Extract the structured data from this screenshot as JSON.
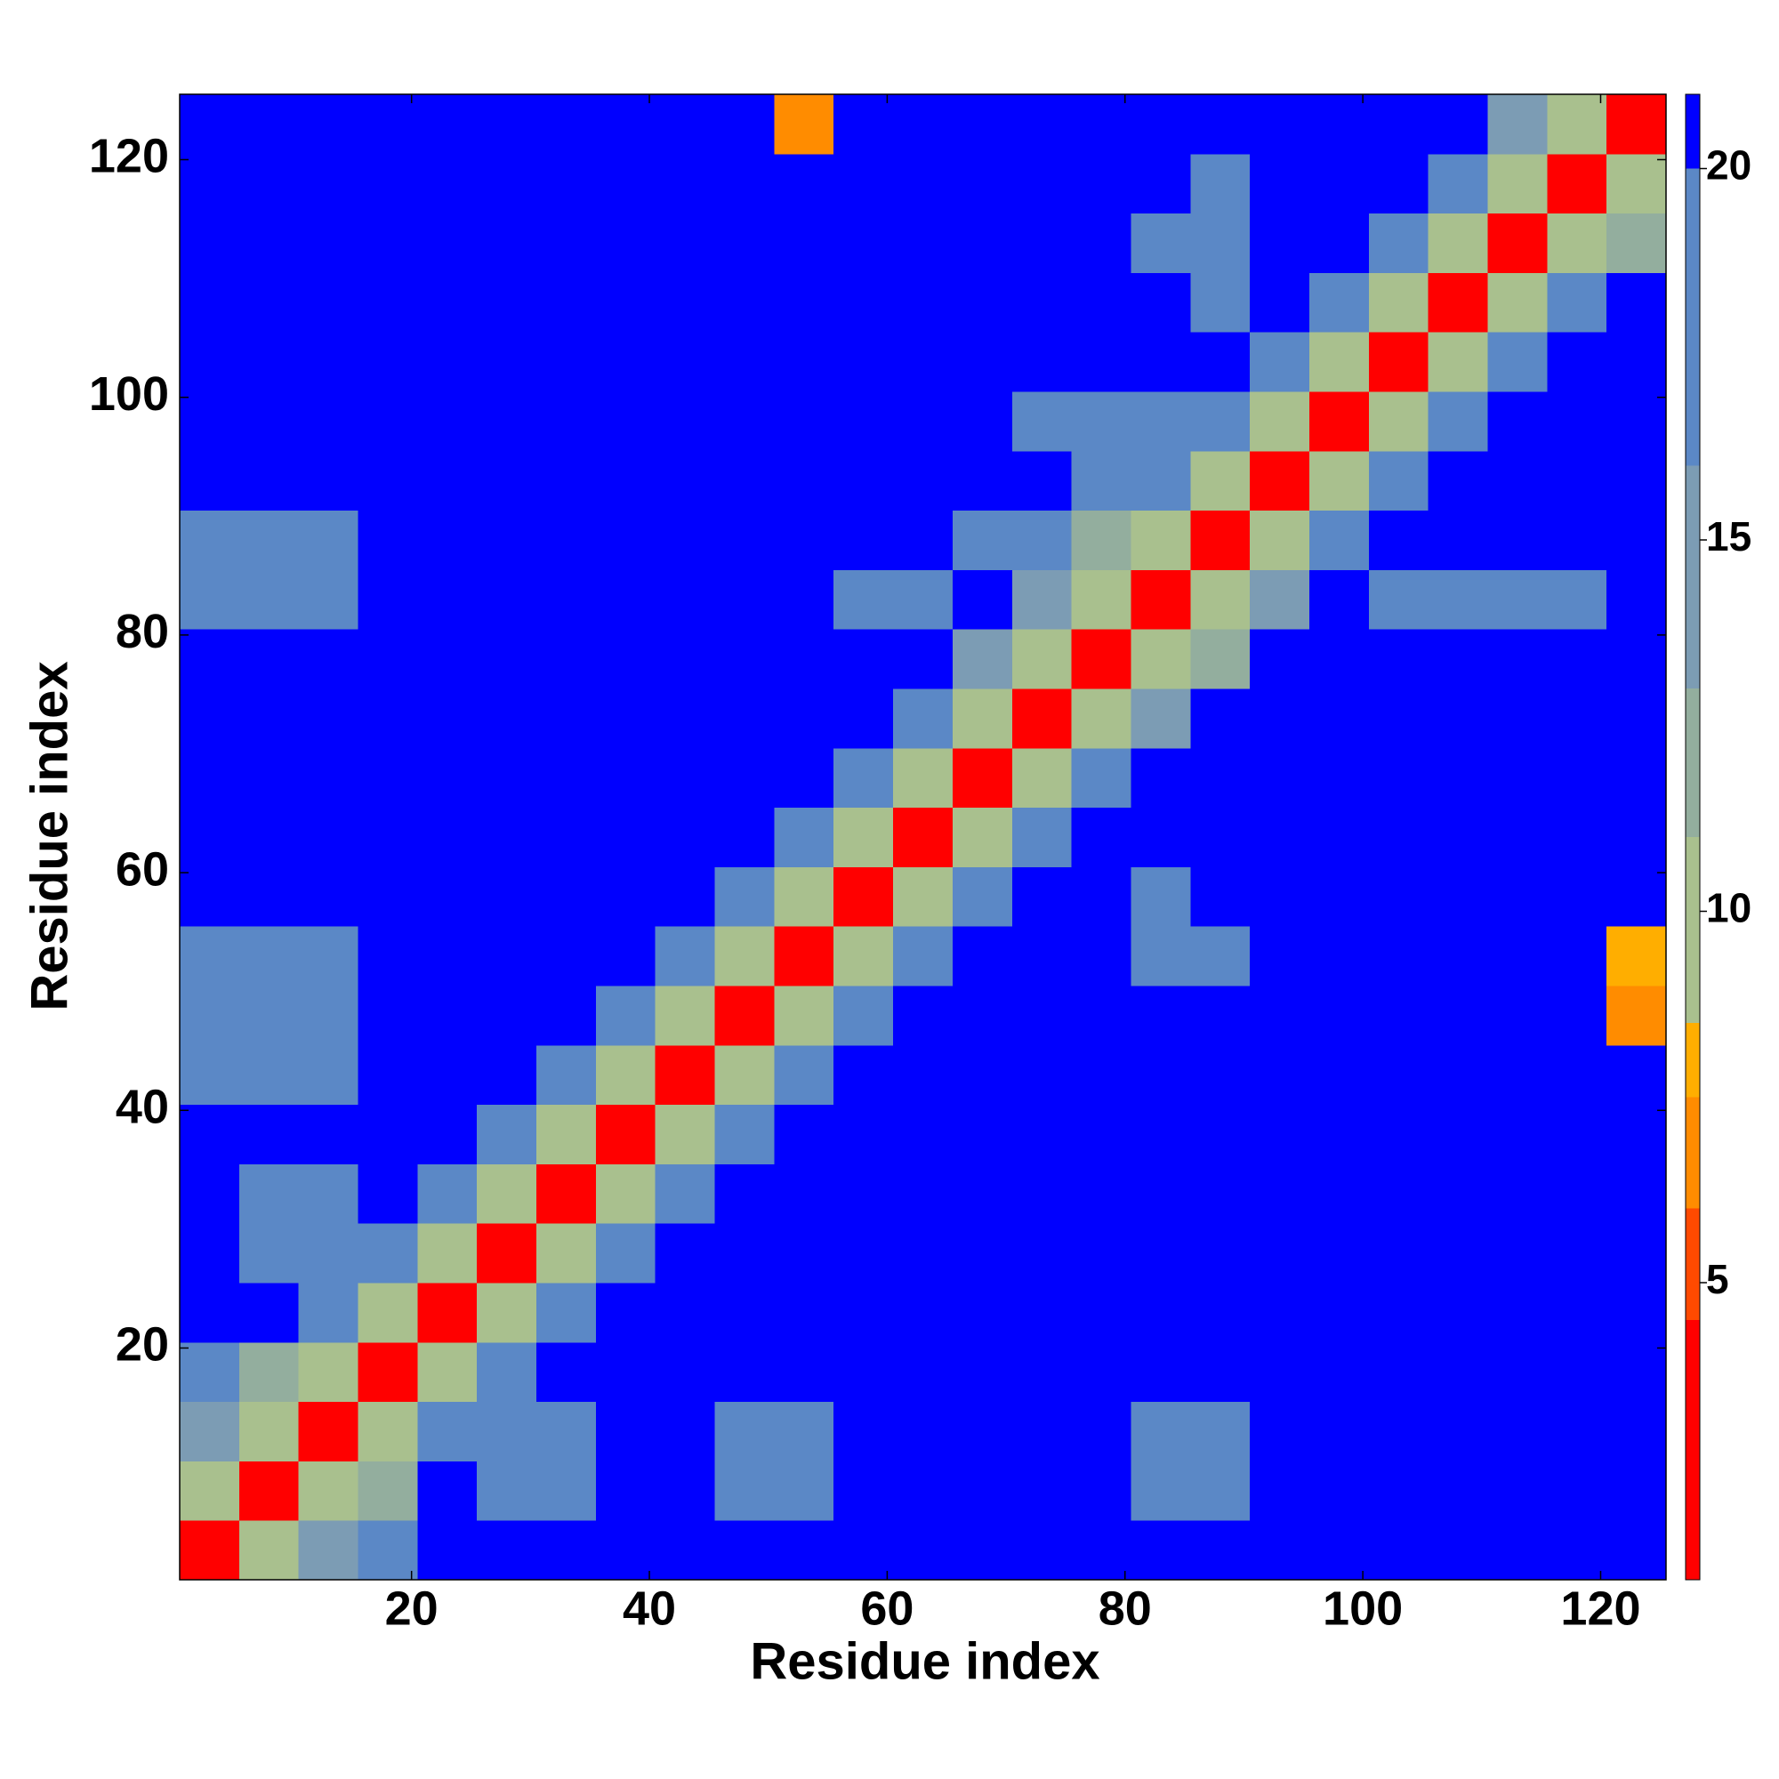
{
  "chart_data": {
    "type": "heatmap",
    "xlabel": "Residue index",
    "ylabel": "Residue index",
    "x": [
      3,
      8,
      13,
      18,
      23,
      28,
      33,
      38,
      43,
      48,
      53,
      58,
      63,
      68,
      73,
      78,
      83,
      88,
      93,
      98,
      103,
      108,
      113,
      118,
      123
    ],
    "y": [
      3,
      8,
      13,
      18,
      23,
      28,
      33,
      38,
      43,
      48,
      53,
      58,
      63,
      68,
      73,
      78,
      83,
      88,
      93,
      98,
      103,
      108,
      113,
      118,
      123
    ],
    "z": [
      [
        4,
        11,
        14,
        17,
        21,
        21,
        21,
        21,
        21,
        21,
        21,
        21,
        21,
        21,
        21,
        21,
        21,
        21,
        21,
        21,
        21,
        21,
        21,
        21,
        21
      ],
      [
        11,
        4,
        11,
        13,
        21,
        18,
        18,
        21,
        21,
        19,
        19,
        21,
        21,
        21,
        21,
        21,
        19,
        19,
        21,
        21,
        21,
        21,
        21,
        21,
        21
      ],
      [
        14,
        11,
        4,
        11,
        17,
        18,
        18,
        21,
        21,
        19,
        19,
        21,
        21,
        21,
        21,
        21,
        19,
        19,
        21,
        21,
        21,
        21,
        21,
        21,
        21
      ],
      [
        17,
        13,
        11,
        4,
        11,
        17,
        21,
        21,
        21,
        21,
        21,
        21,
        21,
        21,
        21,
        21,
        21,
        21,
        21,
        21,
        21,
        21,
        21,
        21,
        21
      ],
      [
        21,
        21,
        17,
        11,
        4,
        11,
        17,
        21,
        21,
        21,
        21,
        21,
        21,
        21,
        21,
        21,
        21,
        21,
        21,
        21,
        21,
        21,
        21,
        21,
        21
      ],
      [
        21,
        18,
        18,
        17,
        11,
        4,
        11,
        17,
        21,
        21,
        21,
        21,
        21,
        21,
        21,
        21,
        21,
        21,
        21,
        21,
        21,
        21,
        21,
        21,
        21
      ],
      [
        21,
        18,
        18,
        21,
        17,
        11,
        4,
        11,
        17,
        21,
        21,
        21,
        21,
        21,
        21,
        21,
        21,
        21,
        21,
        21,
        21,
        21,
        21,
        21,
        21
      ],
      [
        21,
        21,
        21,
        21,
        21,
        17,
        11,
        4,
        11,
        17,
        21,
        21,
        21,
        21,
        21,
        21,
        21,
        21,
        21,
        21,
        21,
        21,
        21,
        21,
        21
      ],
      [
        18,
        18,
        18,
        21,
        21,
        21,
        17,
        11,
        4,
        11,
        17,
        21,
        21,
        21,
        21,
        21,
        21,
        21,
        21,
        21,
        21,
        21,
        21,
        21,
        21
      ],
      [
        18,
        18,
        18,
        21,
        21,
        21,
        21,
        17,
        11,
        4,
        11,
        17,
        21,
        21,
        21,
        21,
        21,
        21,
        21,
        21,
        21,
        21,
        21,
        21,
        7
      ],
      [
        18,
        18,
        18,
        21,
        21,
        21,
        21,
        21,
        17,
        11,
        4,
        11,
        17,
        21,
        21,
        21,
        19,
        19,
        21,
        21,
        21,
        21,
        21,
        21,
        8
      ],
      [
        21,
        21,
        21,
        21,
        21,
        21,
        21,
        21,
        21,
        17,
        11,
        4,
        11,
        17,
        21,
        21,
        19,
        21,
        21,
        21,
        21,
        21,
        21,
        21,
        21
      ],
      [
        21,
        21,
        21,
        21,
        21,
        21,
        21,
        21,
        21,
        21,
        17,
        11,
        4,
        11,
        17,
        21,
        21,
        21,
        21,
        21,
        21,
        21,
        21,
        21,
        21
      ],
      [
        21,
        21,
        21,
        21,
        21,
        21,
        21,
        21,
        21,
        21,
        21,
        17,
        11,
        4,
        11,
        17,
        21,
        21,
        21,
        21,
        21,
        21,
        21,
        21,
        21
      ],
      [
        21,
        21,
        21,
        21,
        21,
        21,
        21,
        21,
        21,
        21,
        21,
        21,
        17,
        11,
        4,
        11,
        15,
        21,
        21,
        21,
        21,
        21,
        21,
        21,
        21
      ],
      [
        21,
        21,
        21,
        21,
        21,
        21,
        21,
        21,
        21,
        21,
        21,
        21,
        21,
        16,
        11,
        4,
        11,
        13,
        21,
        21,
        21,
        21,
        21,
        21,
        21
      ],
      [
        19,
        19,
        19,
        21,
        21,
        21,
        21,
        21,
        21,
        21,
        21,
        19,
        19,
        21,
        15,
        11,
        4,
        11,
        15,
        21,
        18,
        18,
        18,
        18,
        21
      ],
      [
        19,
        19,
        19,
        21,
        21,
        21,
        21,
        21,
        21,
        21,
        21,
        21,
        21,
        19,
        17,
        13,
        11,
        4,
        11,
        17,
        21,
        21,
        21,
        21,
        21
      ],
      [
        21,
        21,
        21,
        21,
        21,
        21,
        21,
        21,
        21,
        21,
        21,
        21,
        21,
        21,
        21,
        17,
        17,
        11,
        4,
        11,
        17,
        21,
        21,
        21,
        21
      ],
      [
        21,
        21,
        21,
        21,
        21,
        21,
        21,
        21,
        21,
        21,
        21,
        21,
        21,
        21,
        18,
        18,
        17,
        17,
        11,
        4,
        11,
        17,
        21,
        21,
        21
      ],
      [
        21,
        21,
        21,
        21,
        21,
        21,
        21,
        21,
        21,
        21,
        21,
        21,
        21,
        21,
        21,
        21,
        21,
        21,
        17,
        11,
        4,
        11,
        17,
        21,
        21
      ],
      [
        21,
        21,
        21,
        21,
        21,
        21,
        21,
        21,
        21,
        21,
        21,
        21,
        21,
        21,
        21,
        21,
        21,
        18,
        21,
        17,
        11,
        4,
        11,
        17,
        21
      ],
      [
        21,
        21,
        21,
        21,
        21,
        21,
        21,
        21,
        21,
        21,
        21,
        21,
        21,
        21,
        21,
        21,
        18,
        18,
        21,
        21,
        17,
        11,
        4,
        11,
        13
      ],
      [
        21,
        21,
        21,
        21,
        21,
        21,
        21,
        21,
        21,
        21,
        21,
        21,
        21,
        21,
        21,
        21,
        21,
        18,
        21,
        21,
        21,
        17,
        11,
        4,
        11
      ],
      [
        21,
        21,
        21,
        21,
        21,
        21,
        21,
        21,
        21,
        21,
        7,
        21,
        21,
        21,
        21,
        21,
        21,
        21,
        21,
        21,
        21,
        21,
        14,
        11,
        4
      ]
    ],
    "xlim": [
      0.5,
      125.5
    ],
    "ylim": [
      0.5,
      125.5
    ],
    "xticks": [
      20,
      40,
      60,
      80,
      100,
      120
    ],
    "yticks": [
      20,
      40,
      60,
      80,
      100,
      120
    ],
    "zlim": [
      1,
      21
    ],
    "zticks": [
      5,
      10,
      15,
      20
    ],
    "colorscale": [
      [
        4.5,
        "#ff0000"
      ],
      [
        6,
        "#ff4a00"
      ],
      [
        7.5,
        "#ff8c00"
      ],
      [
        8.5,
        "#ffae00"
      ],
      [
        11,
        "#a9c08e"
      ],
      [
        13,
        "#93ae9e"
      ],
      [
        16,
        "#7c9cb4"
      ],
      [
        20,
        "#5b88c6"
      ],
      [
        21,
        "#0000ff"
      ]
    ]
  }
}
